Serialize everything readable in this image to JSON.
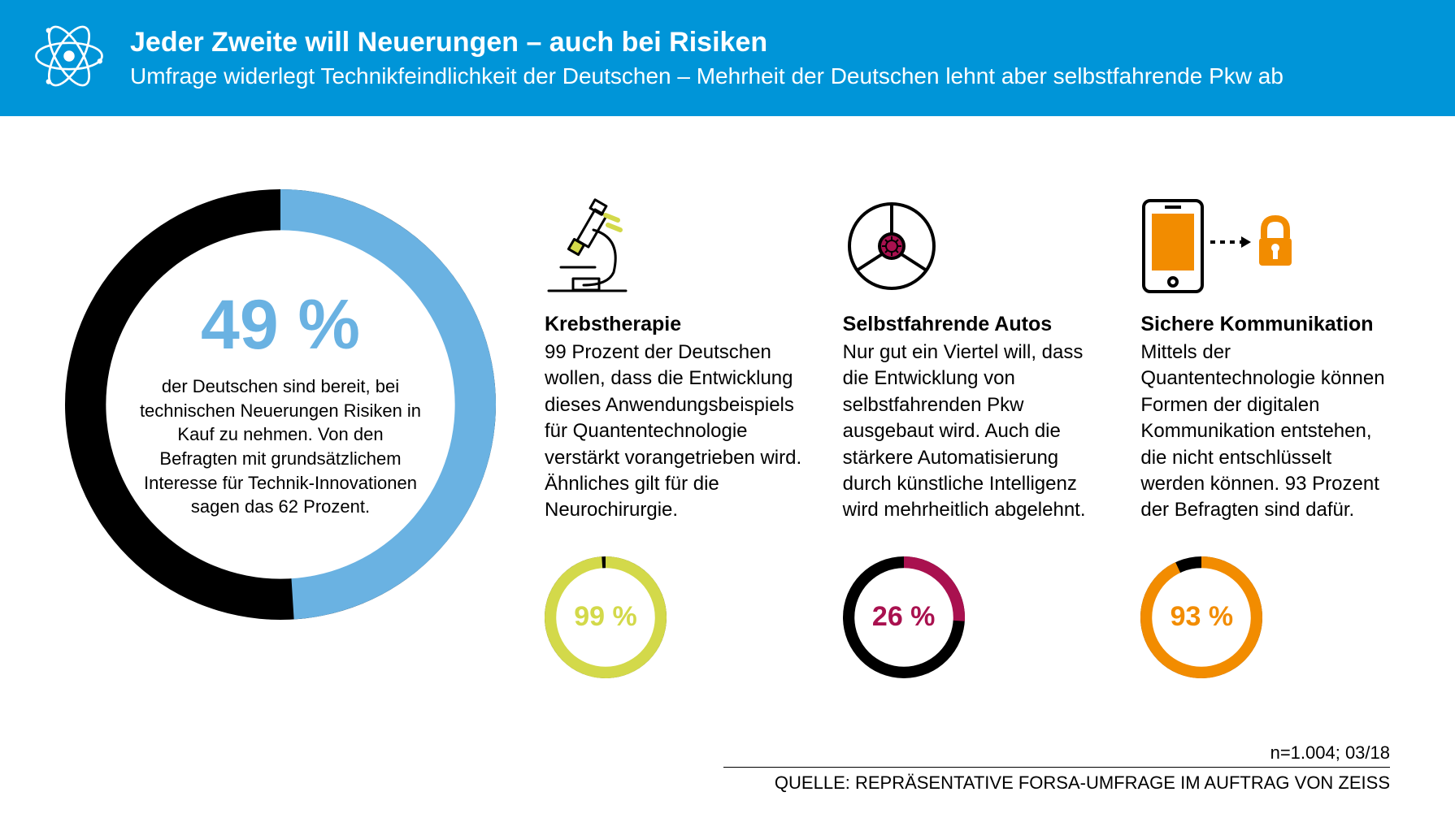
{
  "header": {
    "bg_color": "#0095d8",
    "title": "Jeder Zweite will Neuerungen – auch bei Risiken",
    "subtitle": "Umfrage widerlegt Technikfeindlichkeit der Deutschen – Mehrheit der Deutschen lehnt aber selbstfahrende Pkw ab"
  },
  "main_chart": {
    "type": "donut",
    "value": 49,
    "pct_label": "49 %",
    "pct_color": "#6ab2e2",
    "segment_color": "#6ab2e2",
    "remainder_color": "#000000",
    "background_color": "#ffffff",
    "thickness_ratio": 0.19,
    "start_angle_deg": 0,
    "direction": "clockwise",
    "description": "der Deutschen sind bereit, bei technischen Neuerungen Risiken in Kauf zu nehmen. Von den Befragten mit grundsätzlichem Interesse für Technik-Innovationen sagen das 62 Prozent."
  },
  "panels": [
    {
      "icon": "microscope",
      "title": "Krebstherapie",
      "body": "99 Prozent der Deutschen wollen, dass die Entwicklung dieses Anwendungsbeispiels für Quantentechnologie verstärkt vorangetrieben wird. Ähnliches gilt für die Neurochirurgie.",
      "chart": {
        "type": "donut",
        "value": 99,
        "pct_label": "99 %",
        "segment_color": "#d3d94a",
        "remainder_color": "#000000",
        "pct_color": "#d3d94a",
        "thickness_ratio": 0.19
      }
    },
    {
      "icon": "steering-wheel",
      "title": "Selbstfahrende Autos",
      "body": "Nur gut ein Viertel will, dass die Entwicklung von selbstfahrenden Pkw ausgebaut wird. Auch die stärkere Automatisierung durch künstliche Intelligenz wird mehrheitlich abgelehnt.",
      "chart": {
        "type": "donut",
        "value": 26,
        "pct_label": "26 %",
        "segment_color": "#a9114f",
        "remainder_color": "#000000",
        "pct_color": "#a9114f",
        "thickness_ratio": 0.19
      }
    },
    {
      "icon": "secure-phone",
      "title": "Sichere Kommunikation",
      "body": "Mittels der Quantentechnologie können Formen der digitalen Kommunikation entstehen, die nicht entschlüsselt werden können. 93 Prozent der Befragten sind dafür.",
      "chart": {
        "type": "donut",
        "value": 93,
        "pct_label": "93 %",
        "segment_color": "#f28c00",
        "remainder_color": "#000000",
        "pct_color": "#f28c00",
        "thickness_ratio": 0.19
      }
    }
  ],
  "footer": {
    "note": "n=1.004; 03/18",
    "source": "QUELLE: REPRÄSENTATIVE FORSA-UMFRAGE IM AUFTRAG VON ZEISS"
  }
}
